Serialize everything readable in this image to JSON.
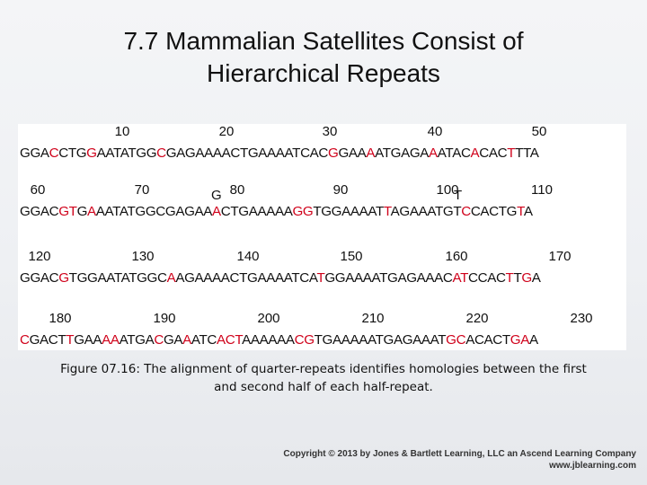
{
  "title": {
    "line1": "7.7  Mammalian Satellites Consist of",
    "line2": "Hierarchical Repeats"
  },
  "figure": {
    "blocks": [
      {
        "numbers": [
          "10",
          "20",
          "30",
          "40",
          "50"
        ],
        "sequence": "GGACCTGGAATATGGCGAGAAAACTGAAAATCACGGAAAATGAGAAATACACACTTTA",
        "highlights": [
          3,
          7,
          15,
          34,
          38,
          45,
          50,
          54
        ]
      },
      {
        "numbers": [
          "60",
          "70",
          "80",
          "90",
          "100",
          "110"
        ],
        "insertions": [
          "G",
          "T"
        ],
        "sequence": "GGACGTGAAATATGGCGAGAAACTGAAAAAGGTGGAAAATTAGAAATGTCCACTGTA",
        "highlights": [
          4,
          5,
          7,
          21,
          30,
          31,
          40,
          49,
          55
        ]
      },
      {
        "numbers": [
          "120",
          "130",
          "140",
          "150",
          "160",
          "170"
        ],
        "sequence": "GGACGTGGAATATGGCAAGAAAACTGAAAATCATGGAAAATGAGAAACATCCACTTGA",
        "highlights": [
          4,
          16,
          33,
          48,
          49,
          54,
          56
        ]
      },
      {
        "numbers": [
          "180",
          "190",
          "200",
          "210",
          "220",
          "230"
        ],
        "sequence": "CGACTTGAAAAATGACGAAATCACTAAAAAACGTGAAAAATGAGAAATGCACACTGAA",
        "highlights": [
          0,
          5,
          9,
          10,
          15,
          18,
          22,
          23,
          24,
          31,
          32,
          48,
          49,
          55,
          56
        ]
      }
    ]
  },
  "caption": {
    "line1": "Figure 07.16: The alignment of quarter-repeats identifies homologies between the first",
    "line2": "and second half of each half-repeat."
  },
  "copyright": {
    "line1": "Copyright © 2013 by Jones & Bartlett Learning, LLC an Ascend Learning Company",
    "line2": "www.jblearning.com"
  },
  "colors": {
    "highlight": "#d0021b",
    "panel": "#ffffff"
  }
}
